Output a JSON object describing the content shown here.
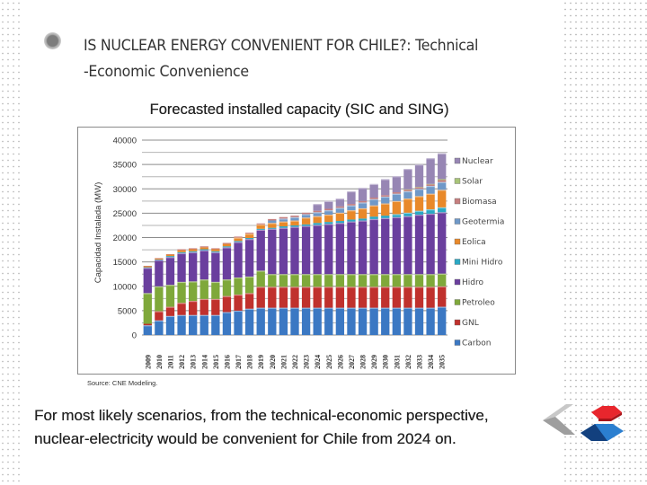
{
  "slide": {
    "title": "IS NUCLEAR ENERGY CONVENIENT FOR CHILE?: Technical -Economic Convenience",
    "title_line1": "IS NUCLEAR ENERGY CONVENIENT FOR CHILE?: Technical",
    "title_line2": "-Economic Convenience",
    "chart_heading": "Forecasted installed capacity (SIC and SING)",
    "source": "Source: CNE Modeling.",
    "conclusion_line1": "For most likely scenarios, from the technical-economic perspective,",
    "conclusion_line2": "nuclear-electricity would be convenient for Chile from 2024 on.",
    "bullet_icon": "circle-bullet-icon",
    "logo_icon": "cne-chile-logo-icon"
  },
  "chart_data": {
    "type": "bar",
    "stacked": true,
    "title": "Forecasted installed capacity (SIC and SING)",
    "xlabel": "",
    "ylabel": "Capacidad Instalada (MW)",
    "ylim": [
      0,
      40000
    ],
    "yticks": [
      0,
      5000,
      10000,
      15000,
      20000,
      25000,
      30000,
      35000,
      40000
    ],
    "ytick_labels": [
      "0",
      "5000",
      "10000",
      "15000",
      "20000",
      "25000",
      "30000",
      "35000",
      "40000"
    ],
    "grid": true,
    "legend_position": "right",
    "categories": [
      "2009",
      "2010",
      "2011",
      "2012",
      "2013",
      "2014",
      "2015",
      "2016",
      "2017",
      "2018",
      "2019",
      "2020",
      "2021",
      "2022",
      "2023",
      "2024",
      "2025",
      "2026",
      "2027",
      "2028",
      "2029",
      "2030",
      "2031",
      "2032",
      "2033",
      "2034",
      "2035"
    ],
    "series": [
      {
        "name": "Carbon",
        "color": "#3b78c3",
        "values": [
          2000,
          3000,
          3900,
          4100,
          4100,
          4100,
          4100,
          4700,
          5000,
          5400,
          5600,
          5600,
          5600,
          5600,
          5600,
          5600,
          5600,
          5600,
          5600,
          5600,
          5600,
          5600,
          5600,
          5600,
          5600,
          5600,
          5800
        ]
      },
      {
        "name": "GNL",
        "color": "#c0312d",
        "values": [
          300,
          1900,
          1900,
          2500,
          2900,
          3300,
          3300,
          3300,
          3300,
          3200,
          4300,
          4300,
          4300,
          4300,
          4300,
          4300,
          4300,
          4300,
          4300,
          4300,
          4300,
          4300,
          4300,
          4300,
          4300,
          4300,
          4200
        ]
      },
      {
        "name": "Petroleo",
        "color": "#7fa83a",
        "values": [
          6300,
          5100,
          4500,
          4300,
          4000,
          4000,
          3500,
          3400,
          3500,
          3400,
          3300,
          2600,
          2600,
          2600,
          2600,
          2600,
          2600,
          2600,
          2600,
          2600,
          2600,
          2600,
          2600,
          2600,
          2600,
          2600,
          2600
        ]
      },
      {
        "name": "Hidro",
        "color": "#6a3f9e",
        "values": [
          5200,
          5400,
          5700,
          5900,
          6000,
          6000,
          6100,
          6600,
          7300,
          7700,
          8400,
          9300,
          9500,
          9700,
          9900,
          10100,
          10300,
          10500,
          10800,
          11000,
          11300,
          11500,
          11700,
          11900,
          12200,
          12400,
          12600
        ]
      },
      {
        "name": "Mini Hidro",
        "color": "#2aa8c4",
        "values": [
          100,
          100,
          200,
          200,
          200,
          200,
          200,
          200,
          200,
          200,
          200,
          200,
          300,
          300,
          300,
          400,
          400,
          400,
          400,
          400,
          500,
          500,
          600,
          700,
          800,
          900,
          1000
        ]
      },
      {
        "name": "Eolica",
        "color": "#e8892a",
        "values": [
          200,
          200,
          300,
          400,
          400,
          400,
          400,
          500,
          700,
          900,
          900,
          1000,
          1000,
          1000,
          1400,
          1400,
          1500,
          1700,
          1900,
          2100,
          2300,
          2500,
          2700,
          2900,
          3000,
          3200,
          3600
        ]
      },
      {
        "name": "Geotermia",
        "color": "#6f98c8",
        "values": [
          0,
          0,
          0,
          0,
          0,
          0,
          0,
          0,
          0,
          0,
          0,
          500,
          600,
          700,
          700,
          800,
          900,
          1000,
          1000,
          1200,
          1300,
          1400,
          1500,
          1500,
          1500,
          1600,
          1600
        ]
      },
      {
        "name": "Biomasa",
        "color": "#c67f7f",
        "values": [
          100,
          100,
          100,
          200,
          200,
          200,
          200,
          200,
          200,
          200,
          200,
          300,
          300,
          300,
          300,
          300,
          300,
          300,
          300,
          300,
          300,
          300,
          300,
          300,
          300,
          300,
          400
        ]
      },
      {
        "name": "Solar",
        "color": "#a8c478",
        "values": [
          0,
          0,
          0,
          0,
          0,
          0,
          0,
          0,
          0,
          0,
          0,
          0,
          0,
          0,
          0,
          0,
          0,
          0,
          0,
          0,
          0,
          0,
          0,
          100,
          100,
          100,
          200
        ]
      },
      {
        "name": "Nuclear",
        "color": "#9786b4",
        "values": [
          0,
          0,
          0,
          0,
          0,
          0,
          0,
          0,
          0,
          0,
          0,
          0,
          0,
          0,
          0,
          1400,
          1600,
          1600,
          2600,
          2700,
          2800,
          3300,
          3300,
          4200,
          4600,
          5300,
          5300
        ]
      }
    ],
    "legend_order": [
      "Nuclear",
      "Solar",
      "Biomasa",
      "Geotermia",
      "Eolica",
      "Mini Hidro",
      "Hidro",
      "Petroleo",
      "GNL",
      "Carbon"
    ]
  }
}
